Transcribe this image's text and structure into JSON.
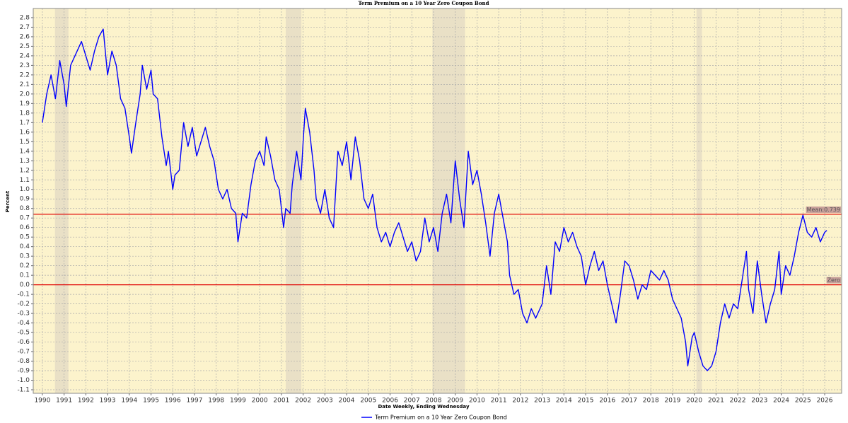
{
  "chart_data": {
    "type": "line",
    "title": "Term Premium on a 10 Year Zero Coupon Bond",
    "x_label": "Date Weekly, Ending Wednesday",
    "y_label": "Percent",
    "xlim": [
      1989.58,
      2026.78
    ],
    "ylim": [
      -1.137,
      2.896
    ],
    "xticks": [
      1990,
      1991,
      1992,
      1993,
      1994,
      1995,
      1996,
      1997,
      1998,
      1999,
      2000,
      2001,
      2002,
      2003,
      2004,
      2005,
      2006,
      2007,
      2008,
      2009,
      2010,
      2011,
      2012,
      2013,
      2014,
      2015,
      2016,
      2017,
      2018,
      2019,
      2020,
      2021,
      2022,
      2023,
      2024,
      2025,
      2026
    ],
    "yticks": [
      2.8,
      2.7,
      2.6,
      2.5,
      2.4,
      2.3,
      2.2,
      2.1,
      {
        "value": 2,
        "label": "2.0"
      },
      1.9,
      1.8,
      1.7,
      1.6,
      1.5,
      1.4,
      1.3,
      1.2,
      1.1,
      {
        "value": 1,
        "label": "1.0"
      },
      0.9,
      0.8,
      0.7,
      0.6,
      0.5,
      0.4,
      0.3,
      0.2,
      0.1,
      {
        "value": 0,
        "label": "0.0"
      },
      -0.1,
      -0.2,
      -0.3,
      -0.4,
      -0.5,
      -0.6,
      -0.7,
      -0.8,
      -0.9,
      {
        "value": -1,
        "label": "-1.0"
      },
      -1.1
    ],
    "grid": true,
    "plot_background": "#fcf3cc",
    "shade_color": "#e9e0c6",
    "shaded_periods": [
      [
        1990.58,
        1991.2
      ],
      [
        2001.2,
        2001.92
      ],
      [
        2007.95,
        2009.45
      ],
      [
        2020.1,
        2020.35
      ]
    ],
    "reference_lines": [
      {
        "label": "Mean:0.739",
        "value": 0.739,
        "color": "#e00000"
      },
      {
        "label": "Zero",
        "value": 0,
        "color": "#e00000"
      }
    ],
    "x": [
      1990.0,
      1990.2,
      1990.4,
      1990.6,
      1990.8,
      1991.0,
      1991.1,
      1991.3,
      1991.5,
      1991.8,
      1992.0,
      1992.2,
      1992.4,
      1992.6,
      1992.8,
      1993.0,
      1993.2,
      1993.4,
      1993.6,
      1993.8,
      1994.0,
      1994.1,
      1994.3,
      1994.5,
      1994.6,
      1994.8,
      1995.0,
      1995.1,
      1995.3,
      1995.5,
      1995.7,
      1995.8,
      1996.0,
      1996.1,
      1996.3,
      1996.5,
      1996.7,
      1996.9,
      1997.1,
      1997.3,
      1997.5,
      1997.7,
      1997.9,
      1998.1,
      1998.3,
      1998.5,
      1998.7,
      1998.9,
      1999.0,
      1999.2,
      1999.4,
      1999.6,
      1999.8,
      2000.0,
      2000.2,
      2000.3,
      2000.5,
      2000.7,
      2000.9,
      2001.1,
      2001.2,
      2001.4,
      2001.5,
      2001.7,
      2001.9,
      2002.0,
      2002.1,
      2002.3,
      2002.5,
      2002.6,
      2002.8,
      2003.0,
      2003.2,
      2003.4,
      2003.6,
      2003.8,
      2004.0,
      2004.2,
      2004.4,
      2004.6,
      2004.8,
      2005.0,
      2005.2,
      2005.4,
      2005.6,
      2005.8,
      2006.0,
      2006.2,
      2006.4,
      2006.6,
      2006.8,
      2007.0,
      2007.2,
      2007.4,
      2007.6,
      2007.8,
      2008.0,
      2008.2,
      2008.4,
      2008.6,
      2008.8,
      2009.0,
      2009.2,
      2009.4,
      2009.6,
      2009.8,
      2010.0,
      2010.2,
      2010.4,
      2010.6,
      2010.8,
      2011.0,
      2011.2,
      2011.4,
      2011.5,
      2011.7,
      2011.9,
      2012.1,
      2012.3,
      2012.5,
      2012.7,
      2013.0,
      2013.2,
      2013.4,
      2013.6,
      2013.8,
      2014.0,
      2014.2,
      2014.4,
      2014.6,
      2014.8,
      2015.0,
      2015.2,
      2015.4,
      2015.6,
      2015.8,
      2016.0,
      2016.2,
      2016.4,
      2016.6,
      2016.8,
      2017.0,
      2017.2,
      2017.4,
      2017.6,
      2017.8,
      2018.0,
      2018.2,
      2018.4,
      2018.6,
      2018.8,
      2019.0,
      2019.2,
      2019.4,
      2019.6,
      2019.7,
      2019.9,
      2020.0,
      2020.2,
      2020.4,
      2020.6,
      2020.8,
      2021.0,
      2021.2,
      2021.4,
      2021.6,
      2021.8,
      2022.0,
      2022.2,
      2022.4,
      2022.5,
      2022.7,
      2022.9,
      2023.1,
      2023.3,
      2023.5,
      2023.7,
      2023.9,
      2024.0,
      2024.2,
      2024.4,
      2024.6,
      2024.8,
      2025.0,
      2025.2,
      2025.4,
      2025.6,
      2025.8,
      2026.0,
      2026.1
    ],
    "series": [
      {
        "name": "Term Premium on a 10 Year Zero Coupon Bond",
        "color": "#0000ff",
        "values": [
          1.7,
          2.0,
          2.2,
          1.95,
          2.35,
          2.1,
          1.87,
          2.3,
          2.4,
          2.55,
          2.4,
          2.25,
          2.45,
          2.6,
          2.68,
          2.2,
          2.45,
          2.3,
          1.95,
          1.85,
          1.55,
          1.38,
          1.7,
          2.0,
          2.3,
          2.05,
          2.25,
          2.0,
          1.95,
          1.55,
          1.25,
          1.4,
          1.0,
          1.15,
          1.2,
          1.7,
          1.45,
          1.65,
          1.35,
          1.5,
          1.65,
          1.45,
          1.3,
          1.0,
          0.9,
          1.0,
          0.8,
          0.75,
          0.45,
          0.75,
          0.7,
          1.05,
          1.3,
          1.4,
          1.25,
          1.55,
          1.35,
          1.1,
          1.0,
          0.6,
          0.8,
          0.75,
          1.05,
          1.4,
          1.1,
          1.5,
          1.85,
          1.6,
          1.2,
          0.9,
          0.75,
          1.0,
          0.7,
          0.6,
          1.4,
          1.25,
          1.5,
          1.1,
          1.55,
          1.3,
          0.9,
          0.8,
          0.95,
          0.6,
          0.45,
          0.55,
          0.4,
          0.55,
          0.65,
          0.5,
          0.35,
          0.45,
          0.25,
          0.35,
          0.7,
          0.45,
          0.6,
          0.35,
          0.75,
          0.95,
          0.65,
          1.3,
          0.9,
          0.6,
          1.4,
          1.05,
          1.2,
          0.95,
          0.65,
          0.3,
          0.75,
          0.95,
          0.7,
          0.45,
          0.1,
          -0.1,
          -0.05,
          -0.3,
          -0.4,
          -0.25,
          -0.35,
          -0.2,
          0.2,
          -0.1,
          0.45,
          0.35,
          0.6,
          0.45,
          0.55,
          0.4,
          0.3,
          0.0,
          0.2,
          0.35,
          0.15,
          0.25,
          0.0,
          -0.2,
          -0.4,
          -0.1,
          0.25,
          0.2,
          0.05,
          -0.15,
          0.0,
          -0.05,
          0.15,
          0.1,
          0.05,
          0.15,
          0.05,
          -0.15,
          -0.25,
          -0.35,
          -0.6,
          -0.85,
          -0.55,
          -0.5,
          -0.7,
          -0.85,
          -0.9,
          -0.85,
          -0.7,
          -0.4,
          -0.2,
          -0.35,
          -0.2,
          -0.25,
          0.05,
          0.35,
          -0.05,
          -0.3,
          0.25,
          -0.1,
          -0.4,
          -0.2,
          -0.05,
          0.35,
          -0.1,
          0.2,
          0.1,
          0.3,
          0.55,
          0.73,
          0.55,
          0.5,
          0.6,
          0.45,
          0.55,
          0.57
        ]
      }
    ]
  }
}
